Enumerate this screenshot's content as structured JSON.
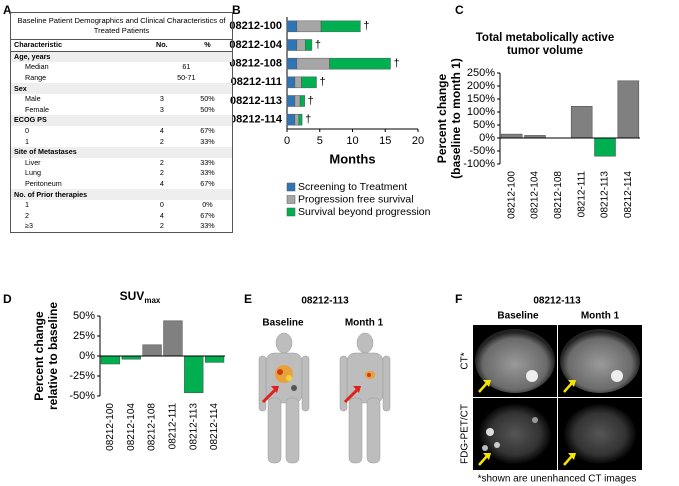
{
  "panel_labels": [
    "A",
    "B",
    "C",
    "D",
    "E",
    "F"
  ],
  "table": {
    "title": "Baseline Patient Demographics and Clinical Characteristics of Treated Patients",
    "header": [
      "Characteristic",
      "No.",
      "%"
    ],
    "rows": [
      [
        "Age, years"
      ],
      [
        "Median",
        "61"
      ],
      [
        "Range",
        "50-71"
      ],
      [
        "Sex"
      ],
      [
        "Male",
        "3",
        "50%"
      ],
      [
        "Female",
        "3",
        "50%"
      ],
      [
        "ECOG PS"
      ],
      [
        "0",
        "4",
        "67%"
      ],
      [
        "1",
        "2",
        "33%"
      ],
      [
        "Site of Metastases"
      ],
      [
        "Liver",
        "2",
        "33%"
      ],
      [
        "Lung",
        "2",
        "33%"
      ],
      [
        "Peritoneum",
        "4",
        "67%"
      ],
      [
        "No. of Prior therapies"
      ],
      [
        "1",
        "0",
        "0%"
      ],
      [
        "2",
        "4",
        "67%"
      ],
      [
        "≥3",
        "2",
        "33%"
      ]
    ]
  },
  "chart_data": [
    {
      "type": "bar",
      "horizontal": true,
      "stacked": true,
      "xlabel": "Months",
      "categories": [
        "08212-100",
        "08212-104",
        "08212-108",
        "08212-111",
        "08212-113",
        "08212-114"
      ],
      "end_labels": [
        "†",
        "†",
        "†",
        "†",
        "†",
        "†"
      ],
      "series": [
        {
          "name": "Screening to Treatment",
          "color": "#2e75b6",
          "values": [
            1.5,
            1.5,
            1.5,
            1.2,
            1.2,
            1.2
          ]
        },
        {
          "name": "Progression free survival",
          "color": "#a6a6a6",
          "values": [
            3.7,
            1.3,
            5,
            1.0,
            0.8,
            0.6
          ]
        },
        {
          "name": "Survival beyond progression",
          "color": "#00b050",
          "values": [
            6,
            1,
            9.3,
            2.3,
            0.7,
            0.5
          ]
        }
      ],
      "xlim": [
        0,
        20
      ],
      "xticks": [
        0,
        5,
        10,
        15,
        20
      ]
    },
    {
      "type": "bar",
      "title": [
        "Total metabolically active",
        "tumor volume"
      ],
      "ylabel": [
        "Percent change",
        "(baseline to month 1)"
      ],
      "categories": [
        "08212-100",
        "08212-104",
        "08212-108",
        "08212-111",
        "08212-113",
        "08212-114"
      ],
      "values": [
        15,
        10,
        0,
        122,
        -70,
        220
      ],
      "colors": [
        "#808080",
        "#808080",
        "#808080",
        "#808080",
        "#00b050",
        "#808080"
      ],
      "ylim": [
        -100,
        250
      ],
      "yticks": [
        {
          "value": -100,
          "label": "-100%"
        },
        {
          "value": -50,
          "label": "-50%"
        },
        {
          "value": 0,
          "label": "0%"
        },
        {
          "value": 50,
          "label": "50%"
        },
        {
          "value": 100,
          "label": "100%"
        },
        {
          "value": 150,
          "label": "150%"
        },
        {
          "value": 200,
          "label": "200%"
        },
        {
          "value": 250,
          "label": "250%"
        }
      ]
    },
    {
      "type": "bar",
      "title": "SUV",
      "title_subscript": "max",
      "ylabel": [
        "Percent change",
        "relative to baseline"
      ],
      "categories": [
        "08212-100",
        "08212-104",
        "08212-108",
        "08212-111",
        "08212-113",
        "08212-114"
      ],
      "values": [
        -10,
        -4,
        14,
        44,
        -46,
        -8
      ],
      "colors": [
        "#00b050",
        "#00b050",
        "#808080",
        "#808080",
        "#00b050",
        "#00b050"
      ],
      "ylim": [
        -50,
        50
      ],
      "yticks": [
        {
          "value": -50,
          "label": "-50%"
        },
        {
          "value": -25,
          "label": "-25%"
        },
        {
          "value": 0,
          "label": "0%"
        },
        {
          "value": 25,
          "label": "25%"
        },
        {
          "value": 50,
          "label": "50%"
        }
      ]
    }
  ],
  "panel_e": {
    "patient": "08212-113",
    "baseline": "Baseline",
    "month": "Month 1"
  },
  "panel_f": {
    "patient": "08212-113",
    "baseline": "Baseline",
    "month": "Month 1",
    "row1": "CT*",
    "row2": "FDG-PET/CT",
    "footnote": "*shown are unenhanced CT images"
  }
}
